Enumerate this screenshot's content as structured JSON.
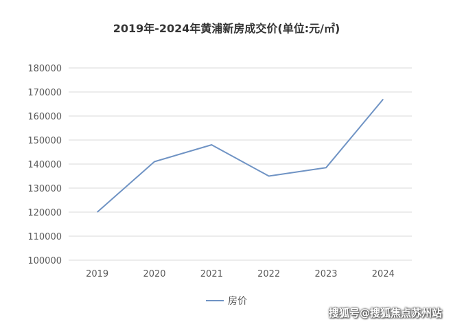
{
  "chart_data": {
    "type": "line",
    "title": "2019年-2024年黄浦新房成交价(单位:元/㎡)",
    "categories": [
      "2019",
      "2020",
      "2021",
      "2022",
      "2023",
      "2024"
    ],
    "series": [
      {
        "name": "房价",
        "values": [
          120000,
          141000,
          148000,
          135000,
          138500,
          167000
        ]
      }
    ],
    "ylim": [
      100000,
      180000
    ],
    "yticks": [
      "100000",
      "110000",
      "120000",
      "130000",
      "140000",
      "150000",
      "160000",
      "170000",
      "180000"
    ],
    "xlabel": "",
    "ylabel": "",
    "grid": true,
    "legend_position": "bottom",
    "line_color": "#6f93c4",
    "grid_color": "#d9d9d9"
  },
  "watermark": "搜狐号@搜狐焦点苏州站"
}
